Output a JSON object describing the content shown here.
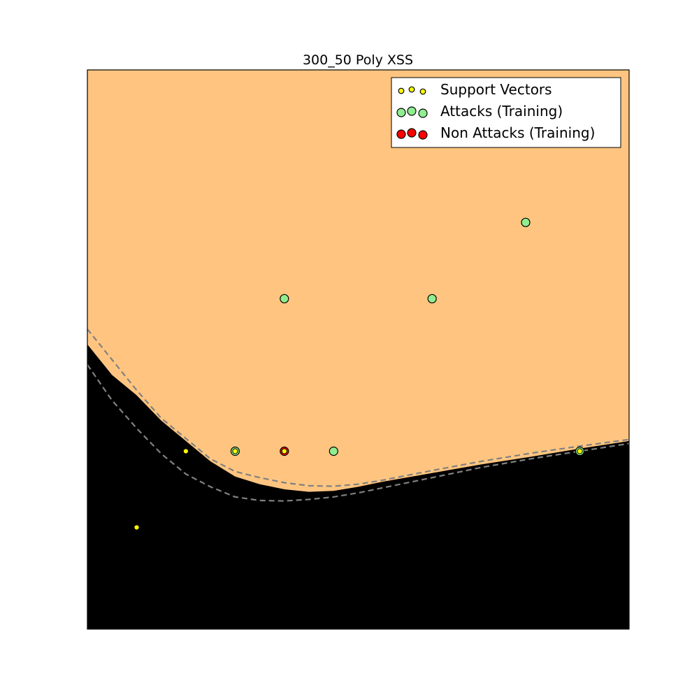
{
  "chart_data": {
    "type": "scatter",
    "title": "300_50 Poly XSS",
    "xlabel": "",
    "ylabel": "",
    "xlim": [
      0,
      11
    ],
    "ylim": [
      0,
      11
    ],
    "grid": false,
    "ticks": false,
    "legend": {
      "position": "top-right",
      "entries": [
        {
          "label": "Support Vectors",
          "color": "#ffff00"
        },
        {
          "label": "Attacks (Training)",
          "color": "#90ee90"
        },
        {
          "label": "Non Attacks (Training)",
          "color": "#ff0000"
        }
      ]
    },
    "colors": {
      "attack_region": "#ffc580",
      "non_attack_region": "#000000",
      "margin_line": "#808080"
    },
    "series": [
      {
        "name": "Attacks (Training)",
        "color": "#90ee90",
        "points": [
          [
            8.9,
            8.0
          ],
          [
            4.0,
            6.5
          ],
          [
            7.0,
            6.5
          ],
          [
            5.0,
            3.5
          ],
          [
            3.0,
            3.5
          ],
          [
            10.0,
            3.5
          ]
        ]
      },
      {
        "name": "Non Attacks (Training)",
        "color": "#ff0000",
        "points": [
          [
            4.0,
            3.5
          ]
        ]
      },
      {
        "name": "Support Vectors",
        "color": "#ffff00",
        "points": [
          [
            2.0,
            3.5
          ],
          [
            3.0,
            3.5
          ],
          [
            4.0,
            3.5
          ],
          [
            10.0,
            3.5
          ],
          [
            1.0,
            2.0
          ]
        ]
      }
    ],
    "decision_boundary": [
      [
        0,
        5.6
      ],
      [
        0.5,
        5.0
      ],
      [
        1.0,
        4.6
      ],
      [
        1.5,
        4.1
      ],
      [
        2.0,
        3.7
      ],
      [
        2.5,
        3.3
      ],
      [
        3.0,
        3.0
      ],
      [
        3.5,
        2.85
      ],
      [
        4.0,
        2.75
      ],
      [
        4.5,
        2.7
      ],
      [
        5.0,
        2.72
      ],
      [
        5.5,
        2.8
      ],
      [
        6.0,
        2.9
      ],
      [
        7.0,
        3.07
      ],
      [
        8.0,
        3.24
      ],
      [
        9.0,
        3.39
      ],
      [
        10.0,
        3.55
      ],
      [
        11.0,
        3.7
      ]
    ],
    "margin_upper": [
      [
        0,
        5.9
      ],
      [
        0.5,
        5.3
      ],
      [
        1.0,
        4.7
      ],
      [
        1.5,
        4.15
      ],
      [
        2.0,
        3.75
      ],
      [
        2.5,
        3.35
      ],
      [
        3.0,
        3.1
      ],
      [
        3.5,
        2.98
      ],
      [
        4.0,
        2.88
      ],
      [
        4.5,
        2.82
      ],
      [
        5.0,
        2.81
      ],
      [
        5.5,
        2.85
      ],
      [
        6.0,
        2.93
      ],
      [
        7.0,
        3.12
      ],
      [
        8.0,
        3.3
      ],
      [
        9.0,
        3.46
      ],
      [
        10.0,
        3.6
      ],
      [
        11.0,
        3.73
      ]
    ],
    "margin_lower": [
      [
        0,
        5.2
      ],
      [
        0.5,
        4.5
      ],
      [
        1.0,
        3.95
      ],
      [
        1.5,
        3.45
      ],
      [
        2.0,
        3.05
      ],
      [
        2.5,
        2.8
      ],
      [
        3.0,
        2.6
      ],
      [
        3.5,
        2.53
      ],
      [
        4.0,
        2.52
      ],
      [
        4.5,
        2.55
      ],
      [
        5.0,
        2.6
      ],
      [
        5.5,
        2.68
      ],
      [
        6.0,
        2.78
      ],
      [
        7.0,
        2.98
      ],
      [
        8.0,
        3.18
      ],
      [
        9.0,
        3.35
      ],
      [
        10.0,
        3.5
      ],
      [
        11.0,
        3.65
      ]
    ]
  }
}
